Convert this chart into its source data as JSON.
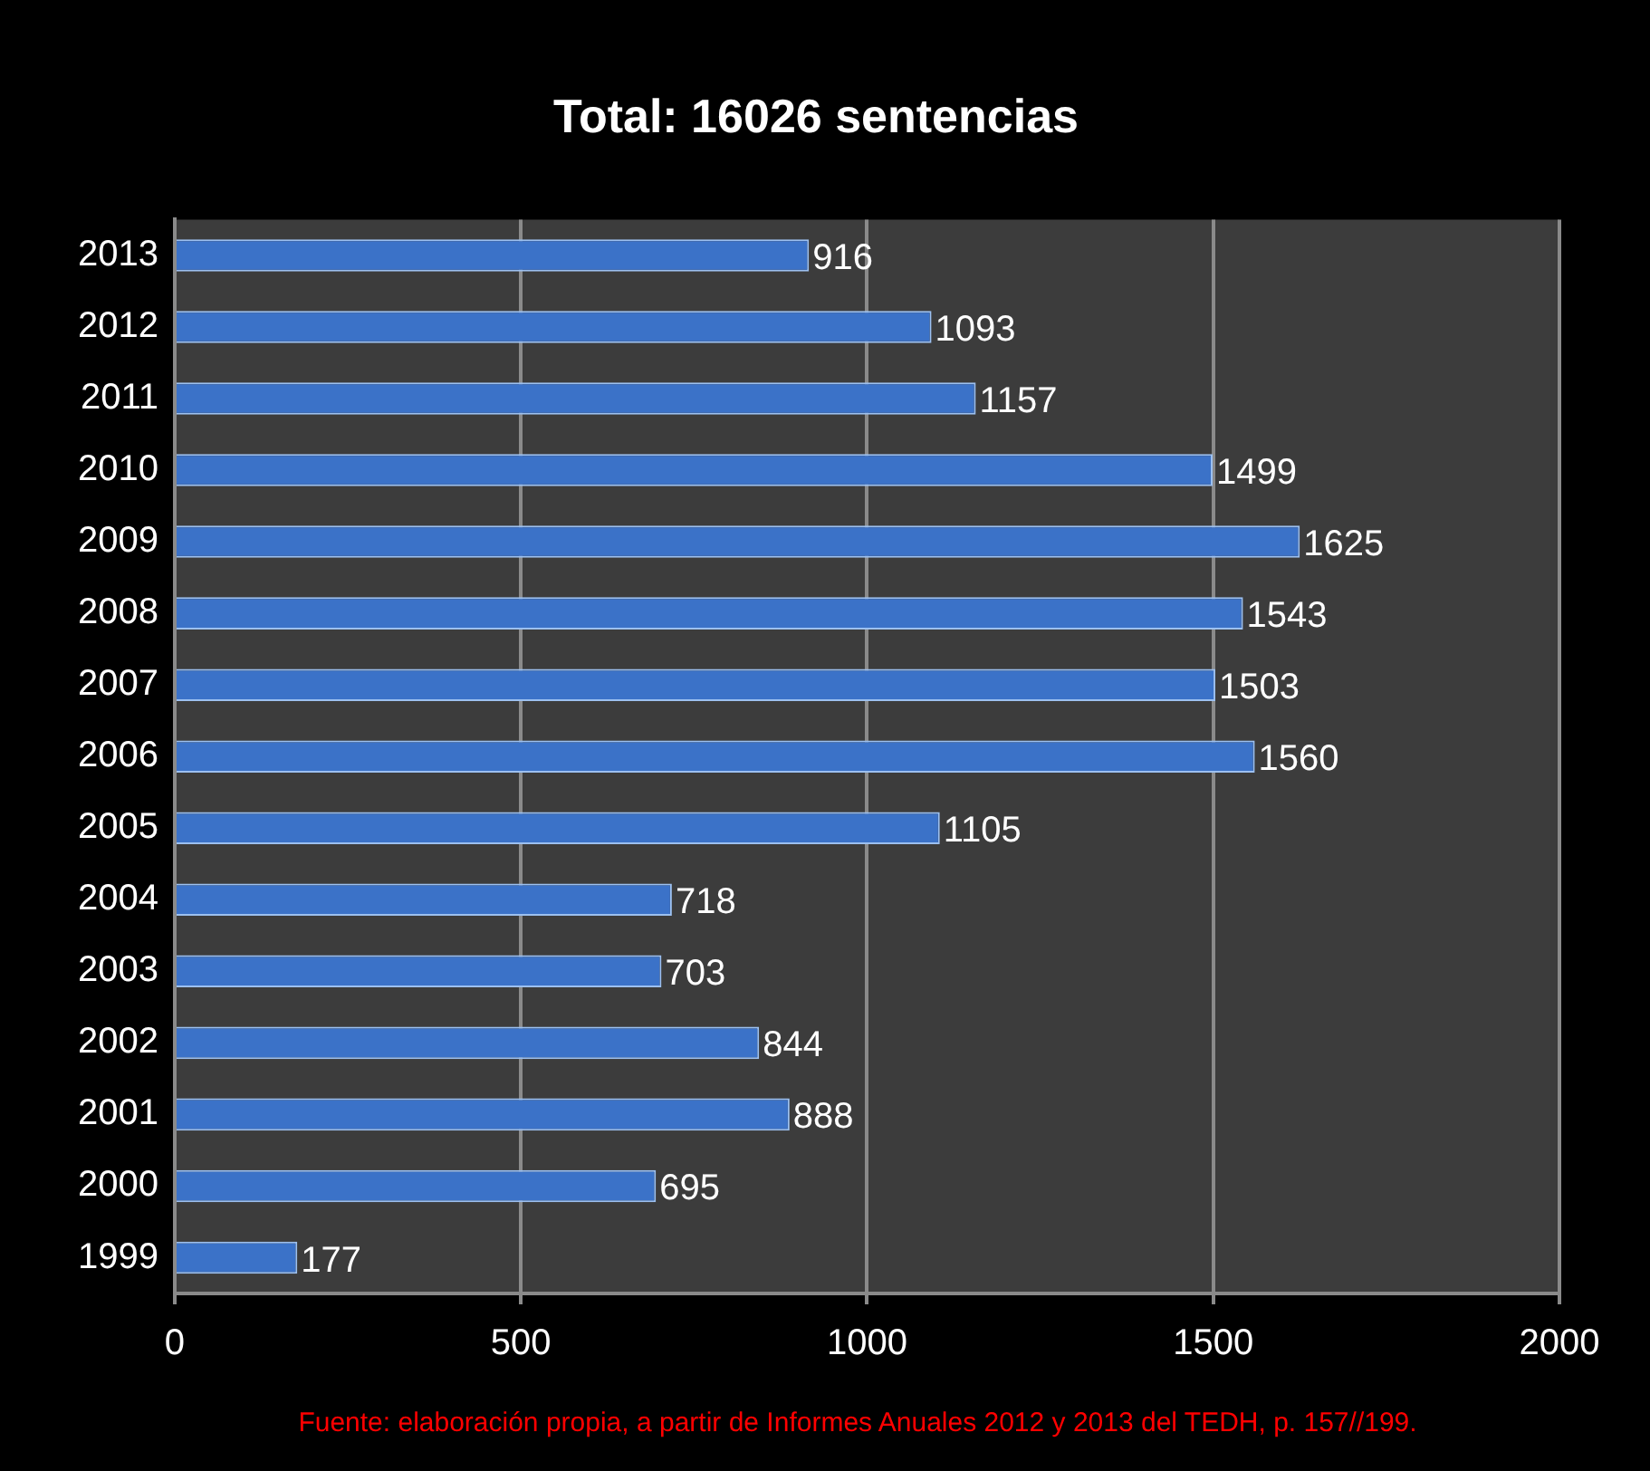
{
  "chart_data": {
    "type": "bar",
    "orientation": "horizontal",
    "title": "Total: 16026 sentencias",
    "categories": [
      "2013",
      "2012",
      "2011",
      "2010",
      "2009",
      "2008",
      "2007",
      "2006",
      "2005",
      "2004",
      "2003",
      "2002",
      "2001",
      "2000",
      "1999"
    ],
    "values": [
      916,
      1093,
      1157,
      1499,
      1625,
      1543,
      1503,
      1560,
      1105,
      718,
      703,
      844,
      888,
      695,
      177
    ],
    "color": "#3b72c8",
    "xlim": [
      0,
      2000
    ],
    "xticks": [
      0,
      500,
      1000,
      1500,
      2000
    ],
    "grid": "x",
    "data_labels": true,
    "legend": false,
    "annotations": [
      "Fuente: elaboración propia, a partir de Informes Anuales 2012 y 2013 del TEDH, p. 157//199."
    ]
  }
}
